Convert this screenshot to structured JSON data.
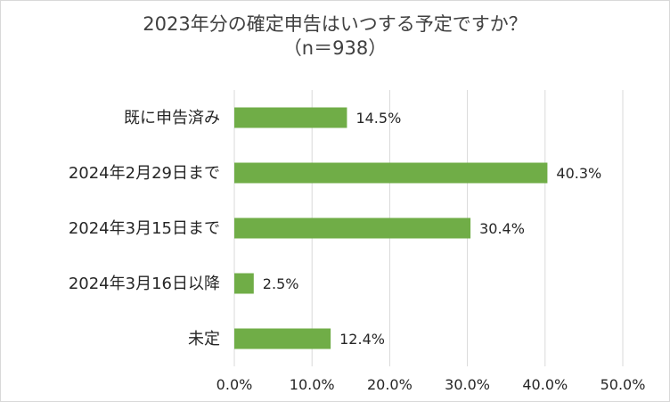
{
  "chart_data": {
    "type": "bar",
    "orientation": "horizontal",
    "title": "2023年分の確定申告はいつする予定ですか？",
    "subtitle": "（n＝938）",
    "categories": [
      "既に申告済み",
      "2024年2月29日まで",
      "2024年3月15日まで",
      "2024年3月16日以降",
      "未定"
    ],
    "values": [
      14.5,
      40.3,
      30.4,
      2.5,
      12.4
    ],
    "value_labels": [
      "14.5%",
      "40.3%",
      "30.4%",
      "2.5%",
      "12.4%"
    ],
    "xlim": [
      0,
      50
    ],
    "x_ticks": [
      0,
      10,
      20,
      30,
      40,
      50
    ],
    "x_tick_labels": [
      "0.0%",
      "10.0%",
      "20.0%",
      "30.0%",
      "40.0%",
      "50.0%"
    ],
    "grid": "vertical",
    "legend": "none",
    "bar_color": "#70ad47",
    "grid_color": "#d9d9d9"
  }
}
